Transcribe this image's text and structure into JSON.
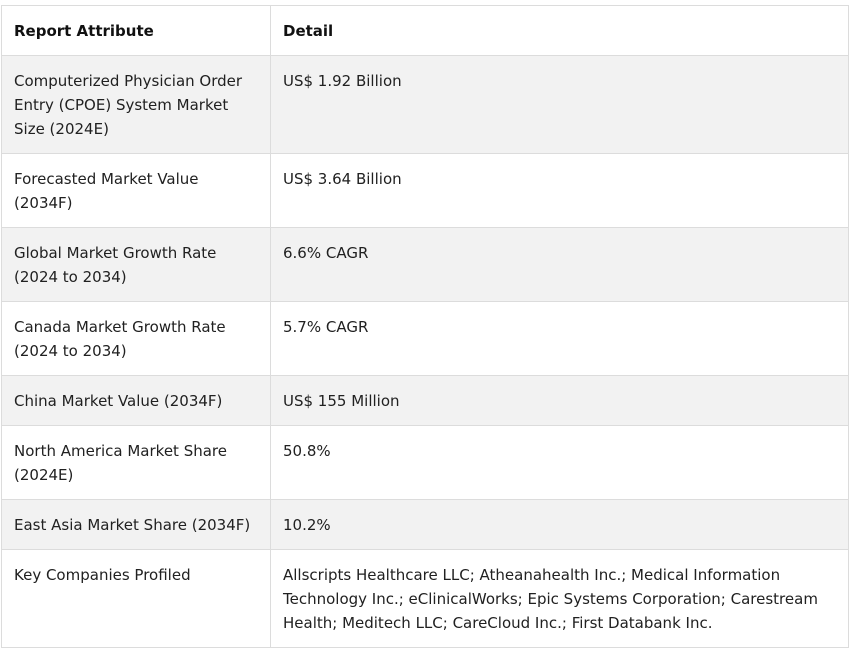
{
  "table": {
    "headers": [
      "Report Attribute",
      "Detail"
    ],
    "rows": [
      [
        "Computerized Physician Order Entry (CPOE) System Market Size (2024E)",
        "US$ 1.92 Billion"
      ],
      [
        "Forecasted Market Value (2034F)",
        "US$ 3.64 Billion"
      ],
      [
        "Global Market Growth Rate (2024 to 2034)",
        "6.6% CAGR"
      ],
      [
        "Canada Market Growth Rate (2024 to 2034)",
        "5.7% CAGR"
      ],
      [
        "China Market Value (2034F)",
        "US$ 155 Million"
      ],
      [
        "North America Market Share (2024E)",
        "50.8%"
      ],
      [
        "East Asia Market Share (2034F)",
        "10.2%"
      ],
      [
        "Key Companies Profiled",
        "Allscripts Healthcare LLC; Atheanahealth Inc.; Medical Information Technology Inc.; eClinicalWorks; Epic Systems Corporation; Carestream Health; Meditech LLC; CareCloud Inc.; First Databank Inc."
      ]
    ]
  }
}
